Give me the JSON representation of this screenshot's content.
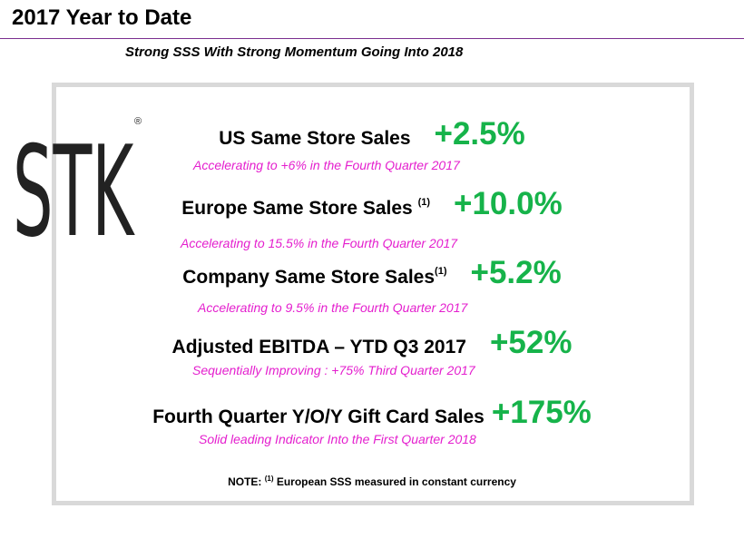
{
  "header": {
    "title": "2017 Year to Date",
    "subtitle": "Strong SSS With Strong Momentum Going Into 2018"
  },
  "logo": {
    "text": "STK",
    "trademark": "®"
  },
  "metrics": [
    {
      "label": "US Same Store Sales",
      "sup": "",
      "value": "+2.5%",
      "note": "Accelerating to +6% in the Fourth Quarter 2017"
    },
    {
      "label": "Europe Same Store Sales ",
      "sup": "(1)",
      "value": "+10.0%",
      "note": "Accelerating to 15.5% in the Fourth Quarter 2017"
    },
    {
      "label": "Company Same Store Sales",
      "sup": "(1)",
      "value": "+5.2%",
      "note": "Accelerating to 9.5% in the Fourth Quarter 2017"
    },
    {
      "label": "Adjusted EBITDA – YTD Q3 2017",
      "sup": "",
      "value": "+52%",
      "note": "Sequentially Improving : +75% Third Quarter 2017"
    },
    {
      "label": "Fourth Quarter Y/O/Y Gift Card Sales",
      "sup": "",
      "value": "+175%",
      "note": "Solid leading Indicator Into the First Quarter 2018"
    }
  ],
  "footnote": {
    "prefix": "NOTE: ",
    "sup": "(1)",
    "text": " European SSS measured in constant currency"
  },
  "colors": {
    "value_green": "#16b34a",
    "note_magenta": "#e41fce",
    "rule_purple": "#7a2e8f",
    "frame_gray": "#d9d9d9"
  }
}
